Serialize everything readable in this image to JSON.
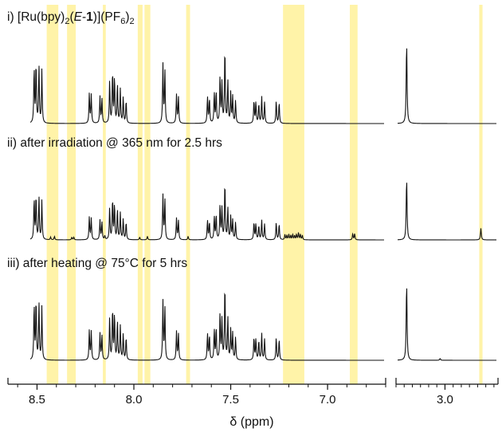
{
  "figure": {
    "xlabel": "δ (ppm)",
    "highlight_color": "#fff3a8",
    "trace_color": "#111111"
  },
  "labels": {
    "trace1": {
      "prefix": "i) [Ru(bpy)",
      "sub1": "2",
      "mid1": "(",
      "italic": "E",
      "dash": "-",
      "bold": "1",
      "mid2": ")](PF",
      "sub2": "6",
      "mid3": ")",
      "sub3": "2"
    },
    "trace2": "ii) after irradiation @ 365 nm for 2.5 hrs",
    "trace3": "iii) after heating @ 75°C for 5 hrs"
  },
  "chart_data": {
    "type": "line",
    "xlabel": "δ (ppm)",
    "panels": [
      {
        "name": "aromatic",
        "xlim": [
          8.65,
          6.7
        ],
        "ticks": [
          8.5,
          8.0,
          7.5,
          7.0
        ],
        "tick_labels": [
          "8.5",
          "8.0",
          "7.5",
          "7.0"
        ]
      },
      {
        "name": "aliphatic",
        "xlim": [
          3.6,
          2.35
        ],
        "ticks": [
          3.0
        ],
        "tick_labels": [
          "3.0"
        ]
      }
    ],
    "highlight_regions_ppm": [
      [
        8.45,
        8.39
      ],
      [
        8.345,
        8.3
      ],
      [
        8.16,
        8.145
      ],
      [
        7.98,
        7.955
      ],
      [
        7.945,
        7.915
      ],
      [
        7.73,
        7.71
      ],
      [
        7.23,
        7.12
      ],
      [
        6.885,
        6.845
      ],
      [
        2.58,
        2.54
      ]
    ],
    "series": [
      {
        "peaks": [
          {
            "ppm": 8.515,
            "h": 0.62
          },
          {
            "ppm": 8.505,
            "h": 0.68
          },
          {
            "ppm": 8.49,
            "h": 0.64
          },
          {
            "ppm": 8.475,
            "h": 0.6
          },
          {
            "ppm": 8.23,
            "h": 0.34
          },
          {
            "ppm": 8.22,
            "h": 0.32
          },
          {
            "ppm": 8.175,
            "h": 0.3
          },
          {
            "ppm": 8.165,
            "h": 0.28
          },
          {
            "ppm": 8.125,
            "h": 0.48
          },
          {
            "ppm": 8.11,
            "h": 0.58
          },
          {
            "ppm": 8.1,
            "h": 0.52
          },
          {
            "ppm": 8.085,
            "h": 0.44
          },
          {
            "ppm": 8.07,
            "h": 0.38
          },
          {
            "ppm": 8.055,
            "h": 0.3
          },
          {
            "ppm": 8.04,
            "h": 0.26
          },
          {
            "ppm": 7.85,
            "h": 0.66
          },
          {
            "ppm": 7.84,
            "h": 0.6
          },
          {
            "ppm": 7.78,
            "h": 0.32
          },
          {
            "ppm": 7.77,
            "h": 0.3
          },
          {
            "ppm": 7.62,
            "h": 0.3
          },
          {
            "ppm": 7.61,
            "h": 0.28
          },
          {
            "ppm": 7.585,
            "h": 0.34
          },
          {
            "ppm": 7.575,
            "h": 0.36
          },
          {
            "ppm": 7.555,
            "h": 0.54
          },
          {
            "ppm": 7.545,
            "h": 0.46
          },
          {
            "ppm": 7.53,
            "h": 0.86
          },
          {
            "ppm": 7.515,
            "h": 0.48
          },
          {
            "ppm": 7.5,
            "h": 0.34
          },
          {
            "ppm": 7.49,
            "h": 0.3
          },
          {
            "ppm": 7.475,
            "h": 0.26
          },
          {
            "ppm": 7.38,
            "h": 0.26
          },
          {
            "ppm": 7.37,
            "h": 0.24
          },
          {
            "ppm": 7.355,
            "h": 0.22
          },
          {
            "ppm": 7.34,
            "h": 0.3
          },
          {
            "ppm": 7.325,
            "h": 0.24
          },
          {
            "ppm": 7.265,
            "h": 0.26
          },
          {
            "ppm": 7.25,
            "h": 0.24
          },
          {
            "ppm": 3.47,
            "h": 0.92
          }
        ]
      },
      {
        "peaks": [
          {
            "ppm": 8.515,
            "h": 0.46
          },
          {
            "ppm": 8.505,
            "h": 0.5
          },
          {
            "ppm": 8.49,
            "h": 0.48
          },
          {
            "ppm": 8.475,
            "h": 0.44
          },
          {
            "ppm": 8.43,
            "h": 0.03
          },
          {
            "ppm": 8.41,
            "h": 0.04
          },
          {
            "ppm": 8.32,
            "h": 0.03
          },
          {
            "ppm": 8.31,
            "h": 0.03
          },
          {
            "ppm": 8.23,
            "h": 0.26
          },
          {
            "ppm": 8.22,
            "h": 0.24
          },
          {
            "ppm": 8.175,
            "h": 0.22
          },
          {
            "ppm": 8.165,
            "h": 0.2
          },
          {
            "ppm": 8.15,
            "h": 0.04
          },
          {
            "ppm": 8.125,
            "h": 0.36
          },
          {
            "ppm": 8.11,
            "h": 0.46
          },
          {
            "ppm": 8.1,
            "h": 0.4
          },
          {
            "ppm": 8.085,
            "h": 0.34
          },
          {
            "ppm": 8.07,
            "h": 0.3
          },
          {
            "ppm": 8.055,
            "h": 0.24
          },
          {
            "ppm": 8.04,
            "h": 0.2
          },
          {
            "ppm": 7.97,
            "h": 0.03
          },
          {
            "ppm": 7.93,
            "h": 0.04
          },
          {
            "ppm": 7.85,
            "h": 0.5
          },
          {
            "ppm": 7.84,
            "h": 0.46
          },
          {
            "ppm": 7.78,
            "h": 0.24
          },
          {
            "ppm": 7.77,
            "h": 0.22
          },
          {
            "ppm": 7.72,
            "h": 0.04
          },
          {
            "ppm": 7.62,
            "h": 0.22
          },
          {
            "ppm": 7.61,
            "h": 0.2
          },
          {
            "ppm": 7.585,
            "h": 0.26
          },
          {
            "ppm": 7.575,
            "h": 0.28
          },
          {
            "ppm": 7.555,
            "h": 0.4
          },
          {
            "ppm": 7.545,
            "h": 0.36
          },
          {
            "ppm": 7.53,
            "h": 0.66
          },
          {
            "ppm": 7.515,
            "h": 0.36
          },
          {
            "ppm": 7.5,
            "h": 0.26
          },
          {
            "ppm": 7.49,
            "h": 0.22
          },
          {
            "ppm": 7.475,
            "h": 0.2
          },
          {
            "ppm": 7.38,
            "h": 0.2
          },
          {
            "ppm": 7.37,
            "h": 0.18
          },
          {
            "ppm": 7.355,
            "h": 0.16
          },
          {
            "ppm": 7.34,
            "h": 0.22
          },
          {
            "ppm": 7.325,
            "h": 0.18
          },
          {
            "ppm": 7.265,
            "h": 0.2
          },
          {
            "ppm": 7.25,
            "h": 0.18
          },
          {
            "ppm": 7.22,
            "h": 0.06
          },
          {
            "ppm": 7.21,
            "h": 0.05
          },
          {
            "ppm": 7.2,
            "h": 0.06
          },
          {
            "ppm": 7.19,
            "h": 0.05
          },
          {
            "ppm": 7.18,
            "h": 0.06
          },
          {
            "ppm": 7.17,
            "h": 0.05
          },
          {
            "ppm": 7.16,
            "h": 0.06
          },
          {
            "ppm": 7.15,
            "h": 0.08
          },
          {
            "ppm": 7.14,
            "h": 0.06
          },
          {
            "ppm": 7.13,
            "h": 0.05
          },
          {
            "ppm": 6.87,
            "h": 0.07
          },
          {
            "ppm": 6.86,
            "h": 0.07
          },
          {
            "ppm": 3.47,
            "h": 0.7
          },
          {
            "ppm": 2.56,
            "h": 0.13
          }
        ]
      },
      {
        "peaks": [
          {
            "ppm": 8.515,
            "h": 0.62
          },
          {
            "ppm": 8.505,
            "h": 0.68
          },
          {
            "ppm": 8.49,
            "h": 0.64
          },
          {
            "ppm": 8.475,
            "h": 0.6
          },
          {
            "ppm": 8.23,
            "h": 0.34
          },
          {
            "ppm": 8.22,
            "h": 0.32
          },
          {
            "ppm": 8.175,
            "h": 0.3
          },
          {
            "ppm": 8.165,
            "h": 0.28
          },
          {
            "ppm": 8.125,
            "h": 0.48
          },
          {
            "ppm": 8.11,
            "h": 0.58
          },
          {
            "ppm": 8.1,
            "h": 0.52
          },
          {
            "ppm": 8.085,
            "h": 0.44
          },
          {
            "ppm": 8.07,
            "h": 0.38
          },
          {
            "ppm": 8.055,
            "h": 0.3
          },
          {
            "ppm": 8.04,
            "h": 0.26
          },
          {
            "ppm": 7.85,
            "h": 0.66
          },
          {
            "ppm": 7.84,
            "h": 0.6
          },
          {
            "ppm": 7.78,
            "h": 0.32
          },
          {
            "ppm": 7.77,
            "h": 0.3
          },
          {
            "ppm": 7.62,
            "h": 0.3
          },
          {
            "ppm": 7.61,
            "h": 0.28
          },
          {
            "ppm": 7.585,
            "h": 0.34
          },
          {
            "ppm": 7.575,
            "h": 0.36
          },
          {
            "ppm": 7.555,
            "h": 0.54
          },
          {
            "ppm": 7.545,
            "h": 0.46
          },
          {
            "ppm": 7.53,
            "h": 0.86
          },
          {
            "ppm": 7.515,
            "h": 0.48
          },
          {
            "ppm": 7.5,
            "h": 0.34
          },
          {
            "ppm": 7.49,
            "h": 0.3
          },
          {
            "ppm": 7.475,
            "h": 0.26
          },
          {
            "ppm": 7.38,
            "h": 0.26
          },
          {
            "ppm": 7.37,
            "h": 0.24
          },
          {
            "ppm": 7.355,
            "h": 0.22
          },
          {
            "ppm": 7.34,
            "h": 0.3
          },
          {
            "ppm": 7.325,
            "h": 0.24
          },
          {
            "ppm": 7.265,
            "h": 0.26
          },
          {
            "ppm": 7.25,
            "h": 0.24
          },
          {
            "ppm": 3.47,
            "h": 0.88
          },
          {
            "ppm": 3.06,
            "h": 0.02
          }
        ]
      }
    ]
  }
}
